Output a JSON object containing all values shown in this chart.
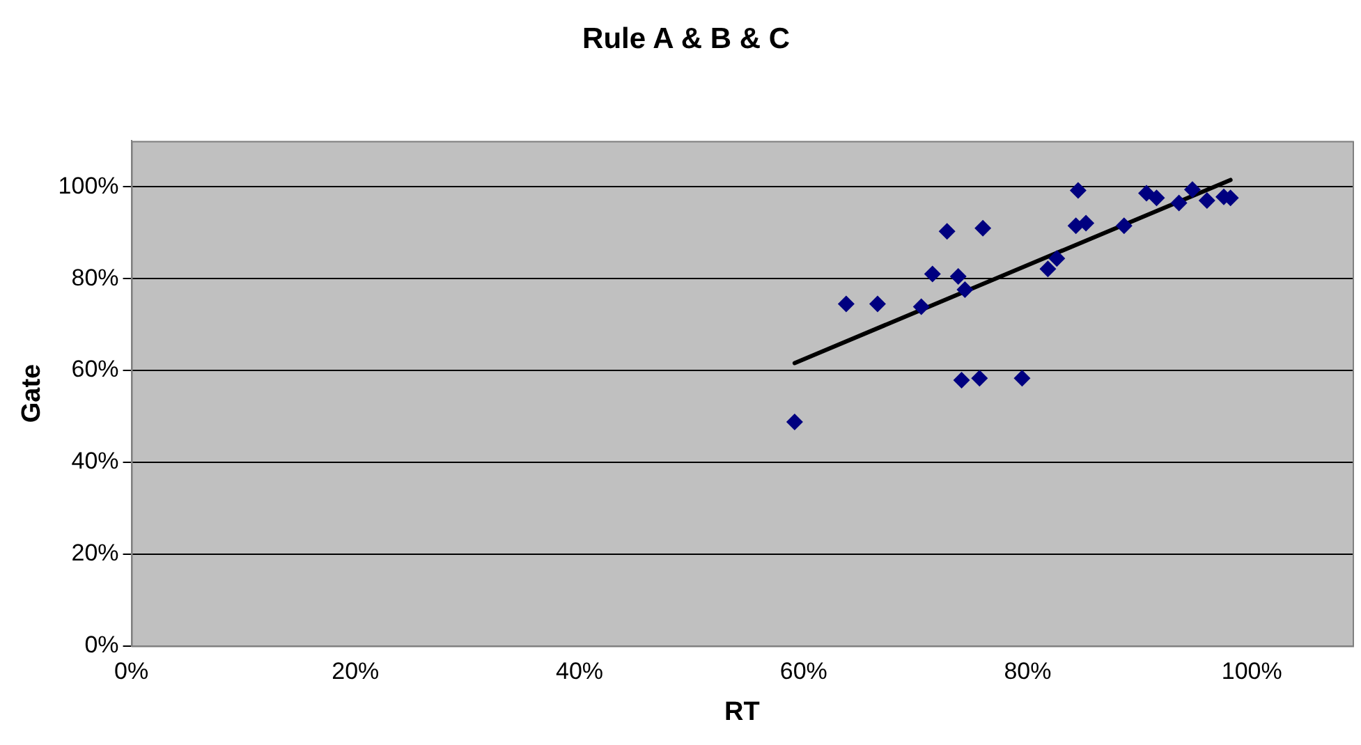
{
  "chart_data": {
    "type": "scatter",
    "title": "Rule A & B & C",
    "xlabel": "RT",
    "ylabel": "Gate",
    "xlim": [
      0,
      1.09
    ],
    "ylim": [
      0,
      1.1
    ],
    "xticks": [
      {
        "value": 0,
        "label": "0%"
      },
      {
        "value": 0.2,
        "label": "20%"
      },
      {
        "value": 0.4,
        "label": "40%"
      },
      {
        "value": 0.6,
        "label": "60%"
      },
      {
        "value": 0.8,
        "label": "80%"
      },
      {
        "value": 1,
        "label": "100%"
      }
    ],
    "yticks": [
      {
        "value": 0,
        "label": "0%"
      },
      {
        "value": 0.2,
        "label": "20%"
      },
      {
        "value": 0.4,
        "label": "40%"
      },
      {
        "value": 0.6,
        "label": "60%"
      },
      {
        "value": 0.8,
        "label": "80%"
      },
      {
        "value": 1,
        "label": "100%"
      }
    ],
    "grid": "y",
    "legend": false,
    "series": [
      {
        "marker": "diamond",
        "color": "#000080",
        "x": [
          0.592,
          0.638,
          0.666,
          0.705,
          0.715,
          0.728,
          0.738,
          0.744,
          0.76,
          0.741,
          0.757,
          0.795,
          0.818,
          0.826,
          0.845,
          0.843,
          0.852,
          0.886,
          0.906,
          0.915,
          0.935,
          0.947,
          0.96,
          0.975,
          0.981
        ],
        "values": [
          0.488,
          0.745,
          0.745,
          0.739,
          0.81,
          0.903,
          0.805,
          0.776,
          0.91,
          0.579,
          0.583,
          0.583,
          0.821,
          0.844,
          0.992,
          0.915,
          0.921,
          0.915,
          0.986,
          0.976,
          0.965,
          0.994,
          0.97,
          0.978,
          0.976
        ]
      },
      {
        "type": "line",
        "marker": "none",
        "color": "#000000",
        "x": [
          0.592,
          0.981
        ],
        "values": [
          0.616,
          1.015
        ]
      }
    ]
  }
}
